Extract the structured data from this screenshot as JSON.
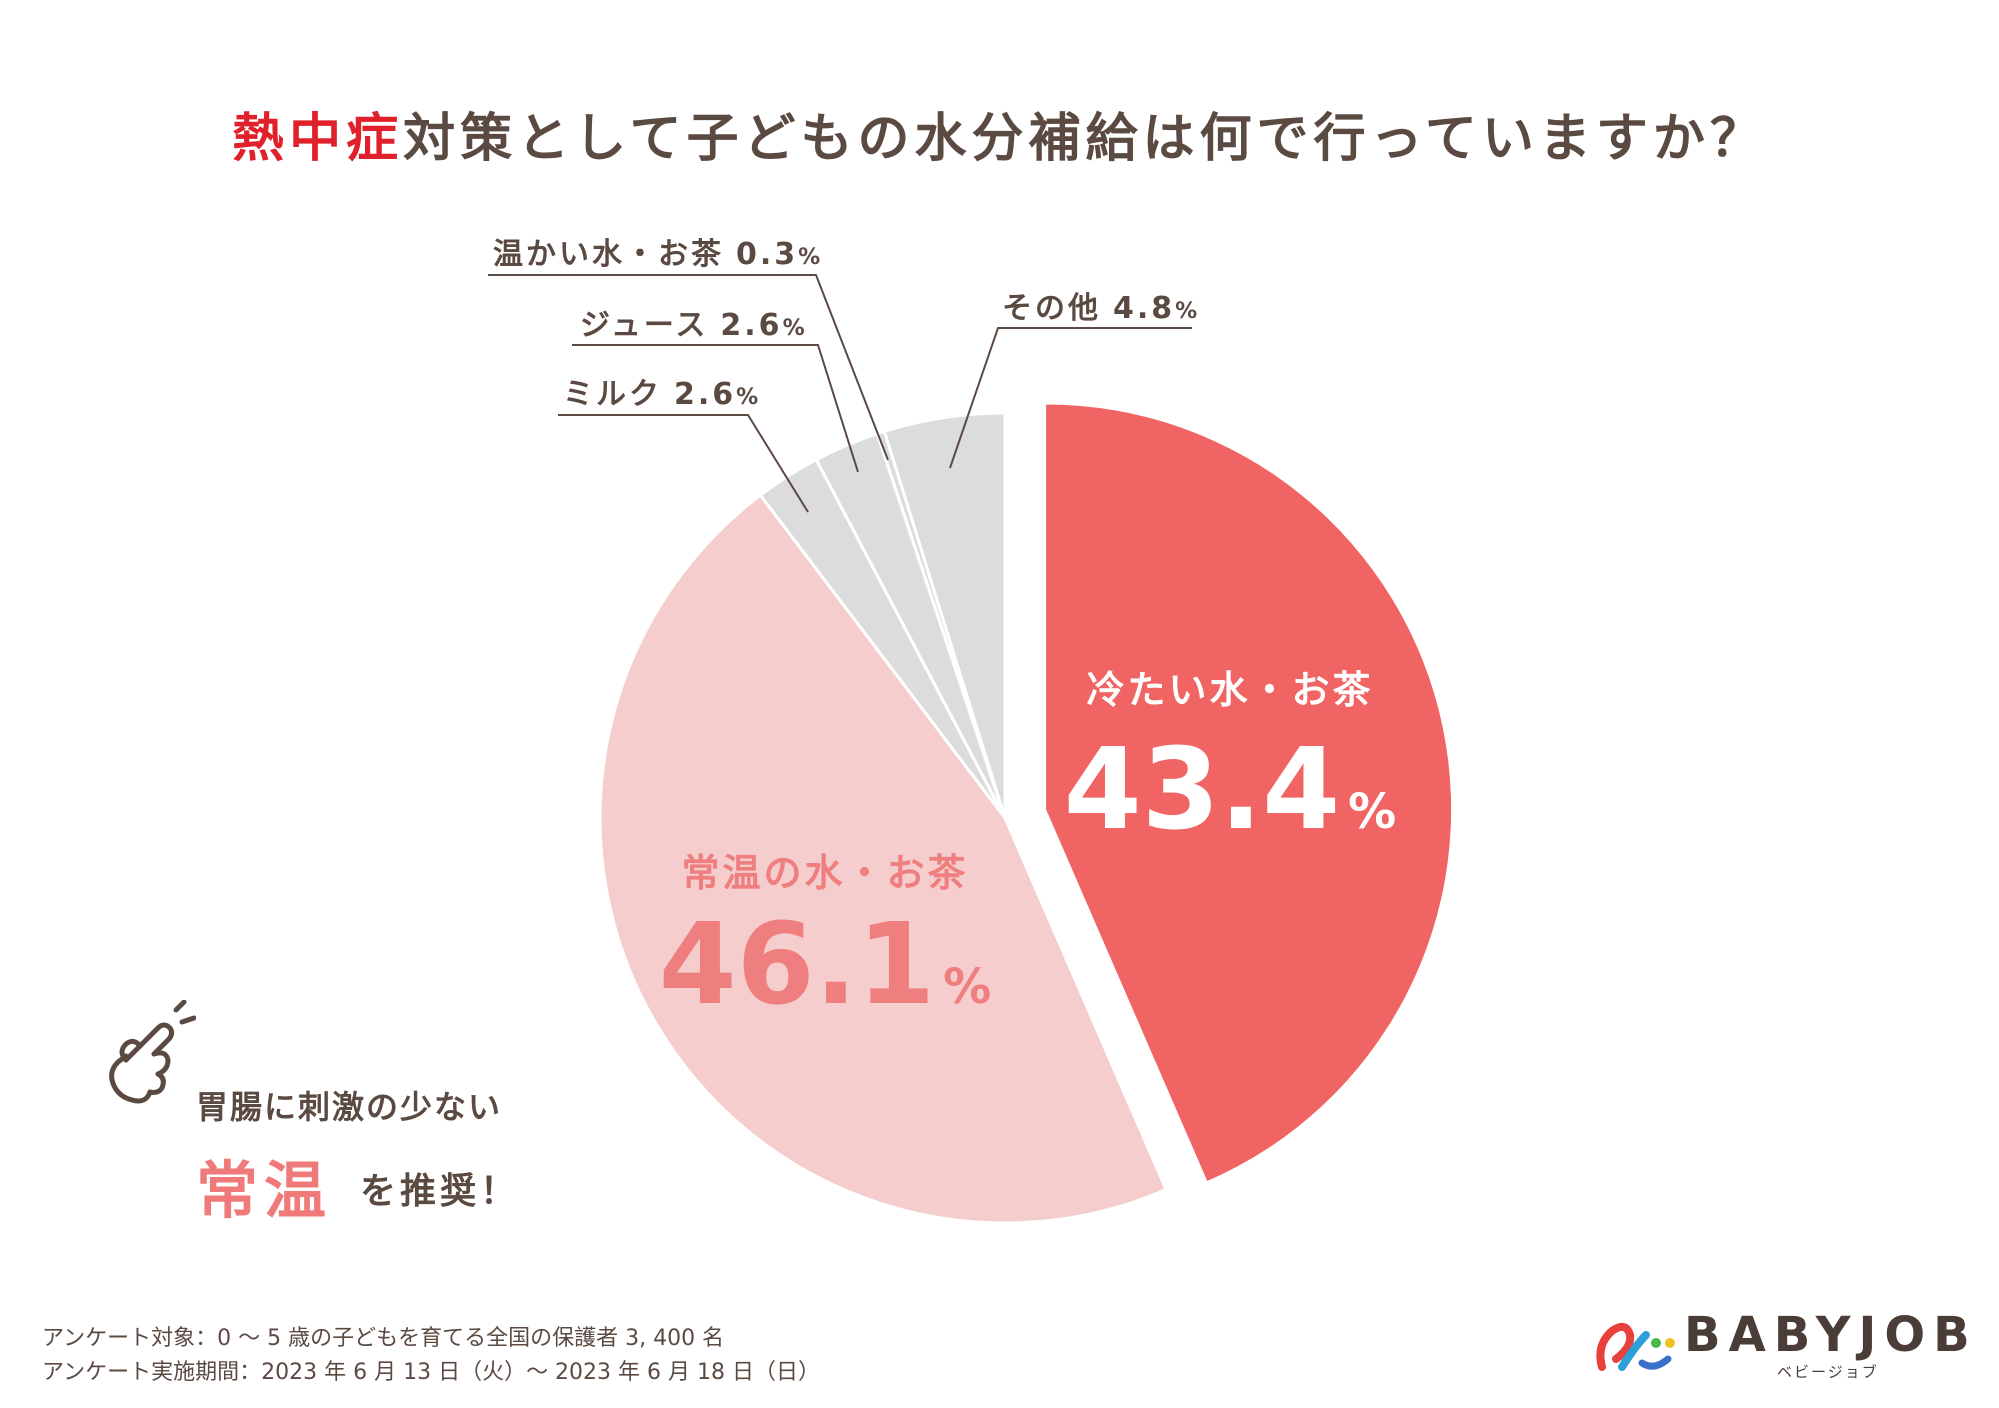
{
  "title": {
    "accent": "熱中症",
    "rest": "対策として子どもの水分補給は何で行っていますか？"
  },
  "chart_data": {
    "type": "pie",
    "title": "熱中症対策として子どもの水分補給は何で行っていますか？",
    "slices": [
      {
        "label": "冷たい水・お茶",
        "value": 43.4,
        "value_text": "43.4",
        "color": "#f06463",
        "exploded": true
      },
      {
        "label": "常温の水・お茶",
        "value": 46.1,
        "value_text": "46.1",
        "color": "#f6cdcd",
        "exploded": false
      },
      {
        "label": "ミルク",
        "value": 2.6,
        "value_text": "2.6",
        "color": "#dcdcdc",
        "exploded": false
      },
      {
        "label": "ジュース",
        "value": 2.6,
        "value_text": "2.6",
        "color": "#dcdcdc",
        "exploded": false
      },
      {
        "label": "温かい水・お茶",
        "value": 0.3,
        "value_text": "0.3",
        "color": "#dcdcdc",
        "exploded": false
      },
      {
        "label": "その他",
        "value": 4.8,
        "value_text": "4.8",
        "color": "#dcdcdc",
        "exploded": false
      }
    ],
    "unit": "%",
    "inside_label_colors": {
      "冷たい水・お茶": "#ffffff",
      "常温の水・お茶": "#ef7e7e"
    }
  },
  "note": {
    "line1": "胃腸に刺激の少ない",
    "emphasis": "常温",
    "rest": "を推奨！"
  },
  "footer": {
    "line1": "アンケート対象：0 ～ 5 歳の子どもを育てる全国の保護者 3, 400 名",
    "line2": "アンケート実施期間：2023 年 6 月 13 日（火）～ 2023 年 6 月 18 日（日）"
  },
  "logo": {
    "wordmark": "BABYJOB",
    "kana": "ベビージョブ"
  },
  "colors": {
    "text": "#5b4a42",
    "accent_red": "#e0202a",
    "pink_text": "#f07a7a"
  }
}
